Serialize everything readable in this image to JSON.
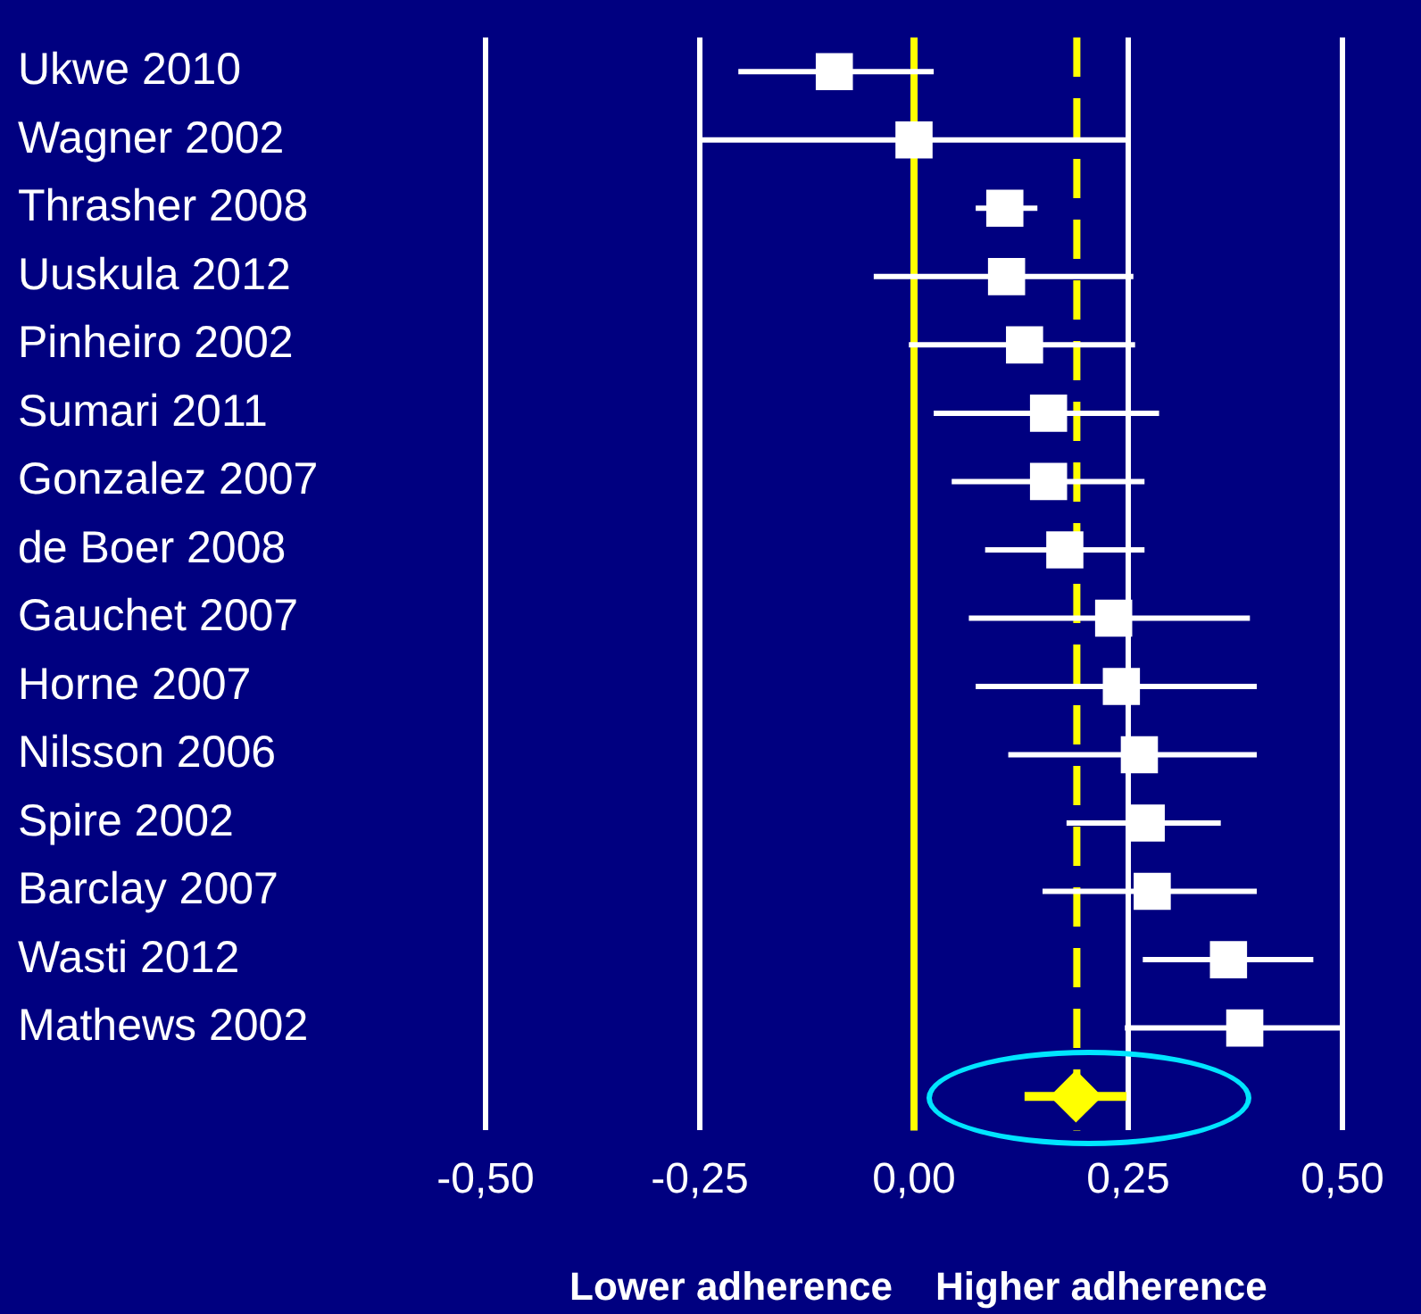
{
  "chart_data": {
    "type": "scatter",
    "orientation": "horizontal",
    "categories": [
      "Ukwe 2010",
      "Wagner 2002",
      "Thrasher 2008",
      "Uuskula 2012",
      "Pinheiro 2002",
      "Sumari 2011",
      "Gonzalez 2007",
      "de Boer 2008",
      "Gauchet 2007",
      "Horne 2007",
      "Nilsson 2006",
      "Spire 2002",
      "Barclay 2007",
      "Wasti 2012",
      "Mathews 2002",
      null
    ],
    "series": [
      {
        "color": "#ffffff",
        "marker": "square",
        "values": [
          -0.093,
          0.0,
          0.106,
          0.108,
          0.129,
          0.157,
          0.157,
          0.176,
          0.233,
          0.242,
          0.263,
          0.271,
          0.278,
          0.367,
          0.386,
          null
        ],
        "errors": [
          [
            -0.205,
            0.023
          ],
          [
            -0.25,
            0.25
          ],
          [
            0.072,
            0.144
          ],
          [
            -0.047,
            0.256
          ],
          [
            -0.006,
            0.258
          ],
          [
            0.023,
            0.286
          ],
          [
            0.044,
            0.269
          ],
          [
            0.083,
            0.269
          ],
          [
            0.064,
            0.392
          ],
          [
            0.072,
            0.4
          ],
          [
            0.11,
            0.4
          ],
          [
            0.178,
            0.358
          ],
          [
            0.15,
            0.4
          ],
          [
            0.267,
            0.466
          ],
          [
            0.246,
            0.5
          ],
          null
        ]
      },
      {
        "color": "#ffff00",
        "marker": "diamond",
        "values": [
          null,
          null,
          null,
          null,
          null,
          null,
          null,
          null,
          null,
          null,
          null,
          null,
          null,
          null,
          null,
          0.189
        ],
        "errors": [
          null,
          null,
          null,
          null,
          null,
          null,
          null,
          null,
          null,
          null,
          null,
          null,
          null,
          null,
          null,
          [
            0.129,
            0.248
          ]
        ]
      }
    ],
    "xlim": [
      -0.5,
      0.5
    ],
    "xticks": [
      {
        "value": -0.5,
        "label": "-0,50"
      },
      {
        "value": -0.25,
        "label": "-0,25"
      },
      {
        "value": 0,
        "label": "0,00"
      },
      {
        "value": 0.25,
        "label": "0,25"
      },
      {
        "value": 0.5,
        "label": "0,50"
      }
    ],
    "grid": "x",
    "legend": false,
    "ref_lines": [
      {
        "axis": "x",
        "value": 0,
        "color": "#ffff00",
        "line_style": "solid"
      },
      {
        "axis": "x",
        "value": 0.19,
        "color": "#ffff00",
        "line_style": "dashed"
      }
    ],
    "annotations": [
      "Lower adherence",
      "Higher adherence"
    ]
  }
}
